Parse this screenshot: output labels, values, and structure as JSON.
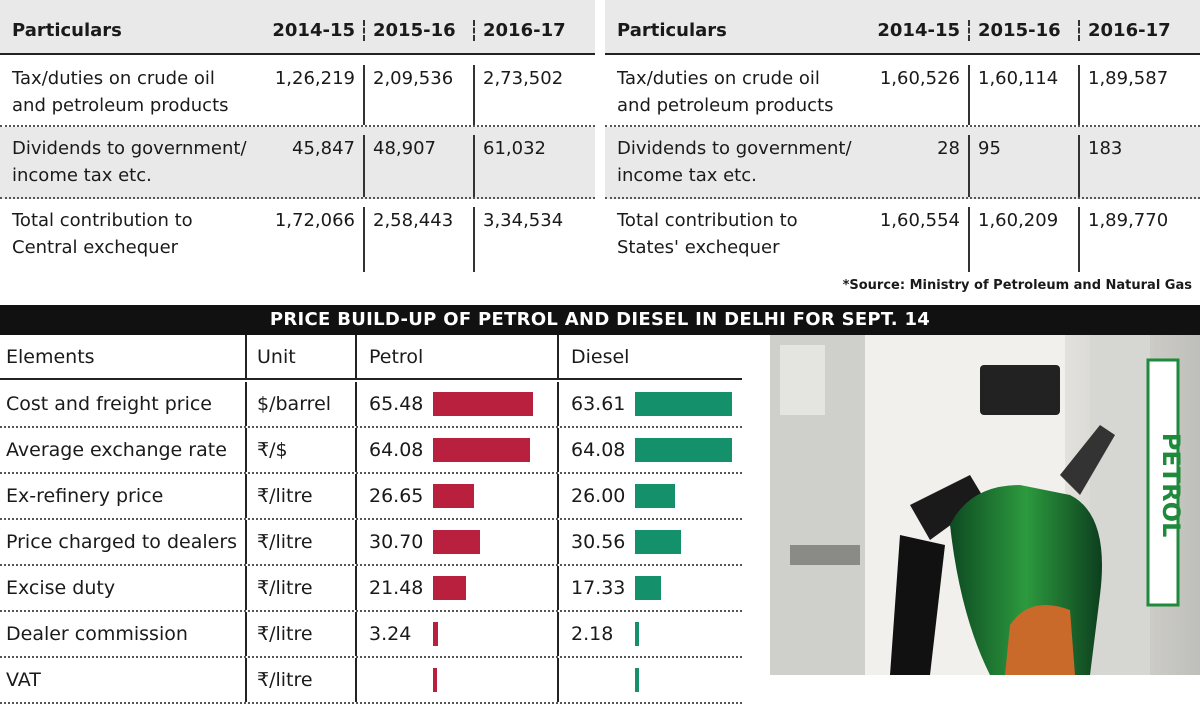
{
  "central": {
    "headers": [
      "Particulars",
      "2014-15",
      "2015-16",
      "2016-17"
    ],
    "rows": [
      {
        "label": [
          "Tax/duties on crude oil",
          "and petroleum products"
        ],
        "values": [
          "1,26,219",
          "2,09,536",
          "2,73,502"
        ]
      },
      {
        "label": [
          "Dividends to government/",
          "income tax etc."
        ],
        "values": [
          "45,847",
          "48,907",
          "61,032"
        ]
      },
      {
        "label": [
          "Total contribution to",
          "Central exchequer"
        ],
        "values": [
          "1,72,066",
          "2,58,443",
          "3,34,534"
        ]
      }
    ]
  },
  "states": {
    "headers": [
      "Particulars",
      "2014-15",
      "2015-16",
      "2016-17"
    ],
    "rows": [
      {
        "label": [
          "Tax/duties on crude oil",
          "and petroleum products"
        ],
        "values": [
          "1,60,526",
          "1,60,114",
          "1,89,587"
        ]
      },
      {
        "label": [
          "Dividends to government/",
          "income tax etc."
        ],
        "values": [
          "28",
          "95",
          "183"
        ]
      },
      {
        "label": [
          "Total contribution to",
          "States' exchequer"
        ],
        "values": [
          "1,60,554",
          "1,60,209",
          "1,89,770"
        ]
      }
    ]
  },
  "source": "*Source: Ministry of Petroleum and Natural Gas",
  "price_title": "PRICE BUILD-UP OF PETROL AND DIESEL IN DELHI FOR SEPT. 14",
  "colors": {
    "petrol": "#b8203d",
    "diesel": "#14906a"
  },
  "photo": {
    "label": "PETROL",
    "icon": "petrol-pump-nozzle"
  },
  "chart_data": {
    "type": "table",
    "title": "PRICE BUILD-UP OF PETROL AND DIESEL IN DELHI FOR SEPT. 14",
    "headers": [
      "Elements",
      "Unit",
      "Petrol",
      "Diesel"
    ],
    "rows": [
      {
        "element": "Cost and freight price",
        "unit": "$/barrel",
        "petrol": "65.48",
        "diesel": "63.61"
      },
      {
        "element": "Average exchange rate",
        "unit": "₹/$",
        "petrol": "64.08",
        "diesel": "64.08"
      },
      {
        "element": "Ex-refinery price",
        "unit": "₹/litre",
        "petrol": "26.65",
        "diesel": "26.00"
      },
      {
        "element": "Price charged to dealers",
        "unit": "₹/litre",
        "petrol": "30.70",
        "diesel": "30.56"
      },
      {
        "element": "Excise duty",
        "unit": "₹/litre",
        "petrol": "21.48",
        "diesel": "17.33"
      },
      {
        "element": "Dealer commission",
        "unit": "₹/litre",
        "petrol": "3.24",
        "diesel": "2.18"
      },
      {
        "element": "VAT",
        "unit": "₹/litre"
      }
    ]
  }
}
